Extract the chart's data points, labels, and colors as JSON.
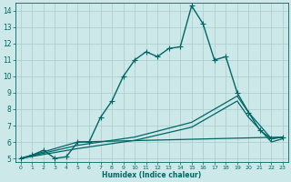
{
  "xlabel": "Humidex (Indice chaleur)",
  "bg_color": "#cce8e8",
  "grid_color": "#aacccc",
  "line_color": "#006666",
  "xlim": [
    -0.5,
    23.5
  ],
  "ylim": [
    4.8,
    14.5
  ],
  "xticks": [
    0,
    1,
    2,
    3,
    4,
    5,
    6,
    7,
    8,
    9,
    10,
    11,
    12,
    13,
    14,
    15,
    16,
    17,
    18,
    19,
    20,
    21,
    22,
    23
  ],
  "yticks": [
    5,
    6,
    7,
    8,
    9,
    10,
    11,
    12,
    13,
    14
  ],
  "lines": [
    {
      "x": [
        0,
        1,
        2,
        3,
        4,
        5,
        6,
        7,
        8,
        9,
        10,
        11,
        12,
        13,
        14,
        15,
        16,
        17,
        18,
        19,
        20,
        21,
        22,
        23
      ],
      "y": [
        5.0,
        5.2,
        5.5,
        5.0,
        5.1,
        6.0,
        6.0,
        7.5,
        8.5,
        10.0,
        11.0,
        11.5,
        11.2,
        11.7,
        11.8,
        14.3,
        13.2,
        11.0,
        11.2,
        9.0,
        7.8,
        6.7,
        6.2,
        6.3
      ],
      "marker": "+",
      "linewidth": 1.0,
      "markersize": 4
    },
    {
      "x": [
        0,
        5,
        10,
        15,
        19,
        20,
        22,
        23
      ],
      "y": [
        5.0,
        5.8,
        6.3,
        7.2,
        8.8,
        7.8,
        6.2,
        6.3
      ],
      "marker": null,
      "linewidth": 0.9
    },
    {
      "x": [
        0,
        5,
        10,
        15,
        19,
        20,
        22,
        23
      ],
      "y": [
        5.0,
        5.6,
        6.1,
        6.9,
        8.5,
        7.5,
        6.0,
        6.2
      ],
      "marker": null,
      "linewidth": 0.9
    },
    {
      "x": [
        0,
        5,
        23
      ],
      "y": [
        5.0,
        6.0,
        6.3
      ],
      "marker": null,
      "linewidth": 0.9
    }
  ]
}
